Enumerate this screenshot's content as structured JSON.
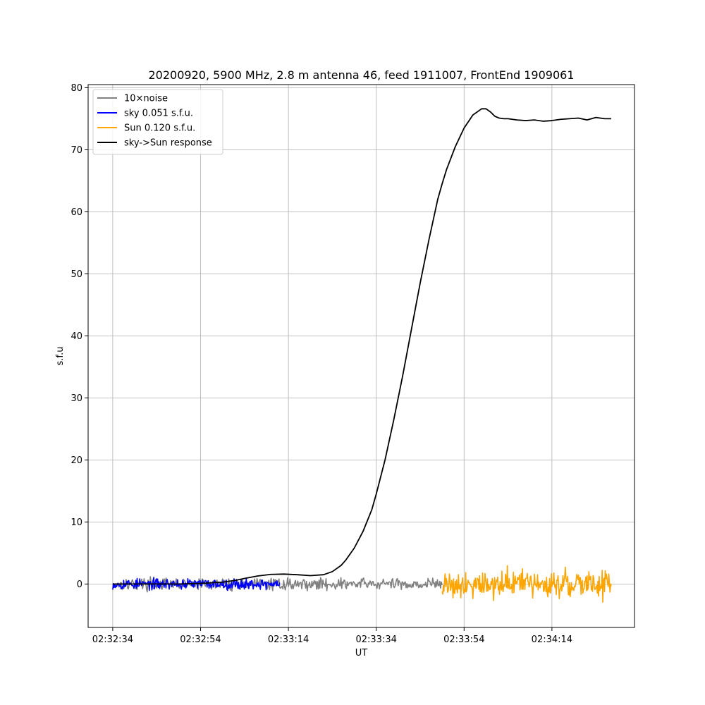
{
  "chart_data": {
    "type": "line",
    "title": "20200920, 5900 MHz, 2.8 m antenna 46, feed 1911007, FrontEnd 1909061",
    "xlabel": "UT",
    "ylabel": "s.f.u",
    "x_unit": "seconds since 02:32:34 UT",
    "xlim": [
      -5.6,
      118.8
    ],
    "ylim": [
      -7,
      80.5
    ],
    "xticks": [
      0,
      20,
      40,
      60,
      80,
      100
    ],
    "xtick_labels": [
      "02:32:34",
      "02:32:54",
      "02:33:14",
      "02:33:34",
      "02:33:54",
      "02:34:14"
    ],
    "yticks": [
      0,
      10,
      20,
      30,
      40,
      50,
      60,
      70,
      80
    ],
    "ytick_labels": [
      "0",
      "10",
      "20",
      "30",
      "40",
      "50",
      "60",
      "70",
      "80"
    ],
    "grid": true,
    "legend_position": "upper-left",
    "series": [
      {
        "name": "10×noise",
        "color": "#808080",
        "kind": "noise",
        "x_range": [
          0,
          75
        ],
        "amplitude": 1.4,
        "points": 420
      },
      {
        "name": "sky 0.051 s.f.u.",
        "color": "#0000ff",
        "kind": "noise",
        "x_range": [
          0,
          38
        ],
        "amplitude": 1.3,
        "points": 260
      },
      {
        "name": "Sun 0.120 s.f.u.",
        "color": "#ffa500",
        "kind": "noise",
        "x_range": [
          75,
          113.5
        ],
        "amplitude": 3.2,
        "points": 280
      },
      {
        "name": "sky->Sun response",
        "color": "#000000",
        "kind": "line",
        "x": [
          0,
          5,
          10,
          15,
          20,
          25,
          28,
          30,
          33,
          36,
          39,
          42,
          45,
          48,
          50,
          52,
          53,
          55,
          57,
          59,
          60,
          62,
          64,
          66,
          68,
          70,
          72,
          74,
          75,
          76,
          78,
          80,
          82,
          84,
          85,
          86,
          87,
          88,
          89,
          90,
          91,
          92,
          94,
          96,
          98,
          100,
          102,
          104,
          106,
          108,
          110,
          112,
          113.5
        ],
        "y": [
          0,
          0,
          0,
          0,
          0.1,
          0.3,
          0.6,
          0.9,
          1.3,
          1.55,
          1.6,
          1.5,
          1.35,
          1.5,
          2.0,
          3.0,
          3.8,
          5.8,
          8.5,
          12.0,
          14.5,
          20.0,
          26.5,
          33.5,
          41.0,
          48.5,
          55.5,
          62.0,
          64.5,
          66.8,
          70.5,
          73.5,
          75.6,
          76.6,
          76.6,
          76.1,
          75.4,
          75.1,
          75.0,
          75.0,
          74.9,
          74.8,
          74.7,
          74.8,
          74.6,
          74.7,
          74.9,
          75.0,
          75.1,
          74.8,
          75.2,
          75.0,
          75.0
        ]
      }
    ]
  }
}
